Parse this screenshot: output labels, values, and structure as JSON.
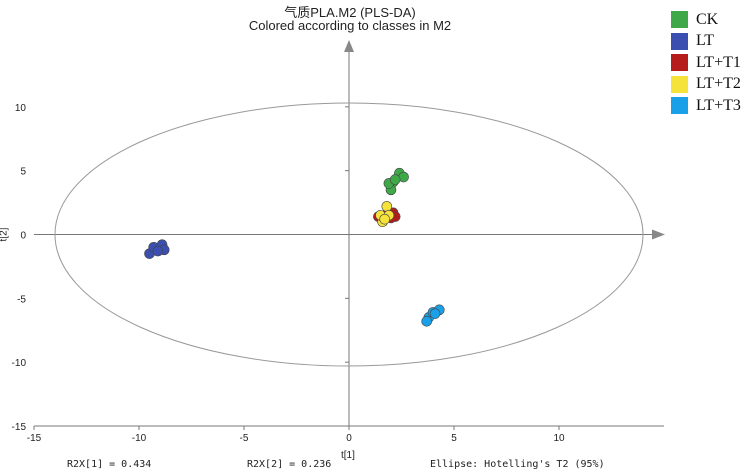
{
  "chart_data": {
    "type": "scatter",
    "title": "气质PLA.M2 (PLS-DA)",
    "subtitle": "Colored according to classes in M2",
    "xlabel": "t[1]",
    "ylabel": "t[2]",
    "xlim": [
      -15,
      15
    ],
    "ylim": [
      -15,
      15
    ],
    "xticks": [
      "-15",
      "-10",
      "-5",
      "0",
      "5",
      "10"
    ],
    "yticks": [
      "10",
      "5",
      "0",
      "-5",
      "-10",
      "-15"
    ],
    "xtick_values": [
      -15,
      -10,
      -5,
      0,
      5,
      10
    ],
    "ytick_values": [
      10,
      5,
      0,
      -5,
      -10,
      -15
    ],
    "ellipse": {
      "cx": 0,
      "cy": 0,
      "rx": 14.0,
      "ry": 10.3
    },
    "legend_position": "top-right",
    "series": [
      {
        "name": "CK",
        "color": "#3fa94a",
        "points": [
          [
            2.1,
            4.1
          ],
          [
            2.4,
            4.8
          ],
          [
            2.6,
            4.5
          ],
          [
            2.0,
            3.5
          ],
          [
            1.9,
            4.0
          ],
          [
            2.2,
            4.3
          ]
        ]
      },
      {
        "name": "LT",
        "color": "#3a4fb0",
        "points": [
          [
            -9.5,
            -1.5
          ],
          [
            -9.3,
            -1.0
          ],
          [
            -8.9,
            -0.8
          ],
          [
            -8.8,
            -1.2
          ],
          [
            -9.1,
            -1.3
          ]
        ]
      },
      {
        "name": "LT+T1",
        "color": "#b71c1c",
        "points": [
          [
            1.4,
            1.4
          ],
          [
            1.8,
            1.6
          ],
          [
            2.1,
            1.7
          ],
          [
            2.2,
            1.4
          ],
          [
            1.6,
            1.2
          ],
          [
            2.0,
            1.3
          ]
        ]
      },
      {
        "name": "LT+T2",
        "color": "#f5e23a",
        "points": [
          [
            1.6,
            1.0
          ],
          [
            1.8,
            2.2
          ],
          [
            1.5,
            1.5
          ],
          [
            1.9,
            1.5
          ],
          [
            1.7,
            1.2
          ]
        ]
      },
      {
        "name": "LT+T3",
        "color": "#1aa0e8",
        "points": [
          [
            3.8,
            -6.5
          ],
          [
            4.0,
            -6.1
          ],
          [
            4.3,
            -5.9
          ],
          [
            3.7,
            -6.8
          ],
          [
            4.1,
            -6.2
          ]
        ]
      }
    ]
  },
  "footer": {
    "r2x1": "R2X[1] = 0.434",
    "r2x2": "R2X[2] = 0.236",
    "ellipse_note": "Ellipse: Hotelling's T2 (95%)"
  }
}
